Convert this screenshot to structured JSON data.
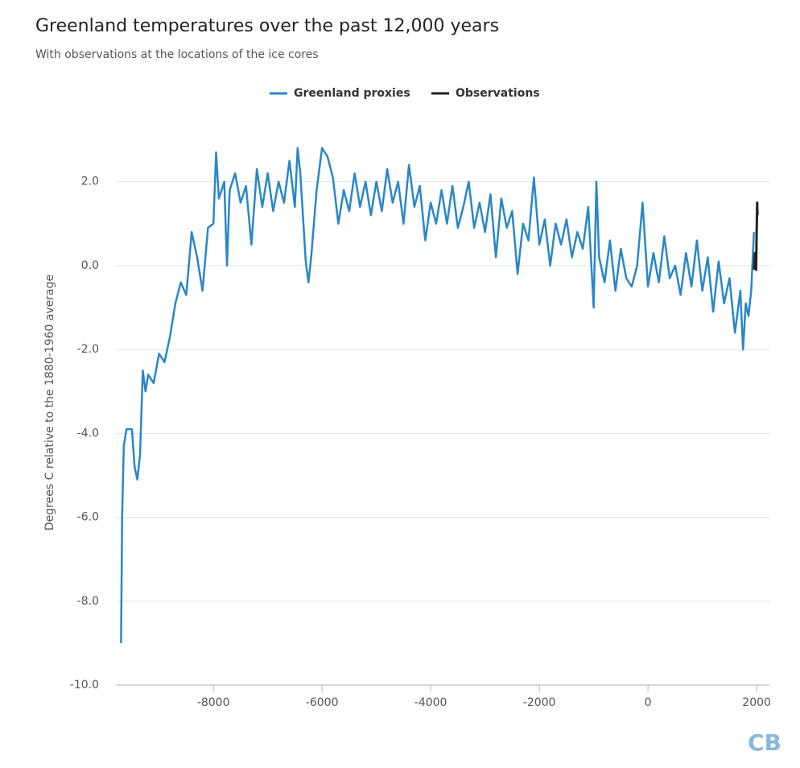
{
  "chart_data": {
    "type": "line",
    "title": "Greenland temperatures over the past 12,000 years",
    "subtitle": "With observations at the locations of the ice cores",
    "y_label": "Degrees C relative to the 1880-1960 average",
    "logo": "CB",
    "xlim": [
      -9780,
      2250
    ],
    "ylim": [
      -10,
      3.3
    ],
    "xticks": [
      -8000,
      -6000,
      -4000,
      -2000,
      0,
      2000
    ],
    "yticks": [
      {
        "value": -10,
        "label": "-10.0"
      },
      {
        "value": -8,
        "label": "-8.0"
      },
      {
        "value": -6,
        "label": "-6.0"
      },
      {
        "value": -4,
        "label": "-4.0"
      },
      {
        "value": -2,
        "label": "-2.0"
      },
      {
        "value": 0,
        "label": "0.0"
      },
      {
        "value": 2,
        "label": "2.0"
      }
    ],
    "grid": true,
    "legend": "top",
    "series": [
      {
        "name": "Greenland proxies",
        "color": "#2a87c8",
        "x": [
          -9700,
          -9680,
          -9650,
          -9600,
          -9500,
          -9450,
          -9400,
          -9350,
          -9300,
          -9250,
          -9200,
          -9100,
          -9000,
          -8900,
          -8800,
          -8700,
          -8600,
          -8500,
          -8400,
          -8300,
          -8200,
          -8100,
          -8000,
          -7950,
          -7900,
          -7800,
          -7750,
          -7700,
          -7600,
          -7500,
          -7400,
          -7300,
          -7200,
          -7100,
          -7000,
          -6900,
          -6800,
          -6700,
          -6600,
          -6500,
          -6450,
          -6400,
          -6300,
          -6250,
          -6200,
          -6100,
          -6000,
          -5900,
          -5800,
          -5700,
          -5600,
          -5500,
          -5400,
          -5300,
          -5200,
          -5100,
          -5000,
          -4900,
          -4800,
          -4700,
          -4600,
          -4500,
          -4400,
          -4300,
          -4200,
          -4100,
          -4000,
          -3900,
          -3800,
          -3700,
          -3600,
          -3500,
          -3400,
          -3300,
          -3200,
          -3100,
          -3000,
          -2900,
          -2800,
          -2700,
          -2600,
          -2500,
          -2400,
          -2300,
          -2200,
          -2100,
          -2000,
          -1900,
          -1800,
          -1700,
          -1600,
          -1500,
          -1400,
          -1300,
          -1200,
          -1100,
          -1000,
          -950,
          -900,
          -800,
          -700,
          -600,
          -500,
          -400,
          -300,
          -200,
          -100,
          0,
          100,
          200,
          300,
          400,
          500,
          600,
          700,
          800,
          900,
          1000,
          1100,
          1200,
          1300,
          1400,
          1500,
          1600,
          1700,
          1750,
          1800,
          1850,
          1900,
          1950
        ],
        "values": [
          -9.0,
          -6.0,
          -4.3,
          -3.9,
          -3.9,
          -4.8,
          -5.1,
          -4.5,
          -2.5,
          -3.0,
          -2.6,
          -2.8,
          -2.1,
          -2.3,
          -1.7,
          -0.9,
          -0.4,
          -0.7,
          0.8,
          0.2,
          -0.6,
          0.9,
          1.0,
          2.7,
          1.6,
          2.0,
          0.0,
          1.8,
          2.2,
          1.5,
          1.9,
          0.5,
          2.3,
          1.4,
          2.2,
          1.3,
          2.0,
          1.5,
          2.5,
          1.4,
          2.8,
          2.2,
          0.1,
          -0.4,
          0.2,
          1.8,
          2.8,
          2.6,
          2.1,
          1.0,
          1.8,
          1.3,
          2.2,
          1.4,
          2.0,
          1.2,
          2.0,
          1.3,
          2.3,
          1.5,
          2.0,
          1.0,
          2.4,
          1.4,
          1.9,
          0.6,
          1.5,
          1.0,
          1.8,
          1.0,
          1.9,
          0.9,
          1.4,
          2.0,
          0.9,
          1.5,
          0.8,
          1.7,
          0.2,
          1.6,
          0.9,
          1.3,
          -0.2,
          1.0,
          0.6,
          2.1,
          0.5,
          1.1,
          0.0,
          1.0,
          0.5,
          1.1,
          0.2,
          0.8,
          0.4,
          1.4,
          -1.0,
          2.0,
          0.2,
          -0.4,
          0.6,
          -0.6,
          0.4,
          -0.3,
          -0.5,
          0.0,
          1.5,
          -0.5,
          0.3,
          -0.4,
          0.7,
          -0.3,
          0.0,
          -0.7,
          0.3,
          -0.5,
          0.6,
          -0.6,
          0.2,
          -1.1,
          0.1,
          -0.9,
          -0.3,
          -1.6,
          -0.6,
          -2.0,
          -0.9,
          -1.2,
          -0.6,
          0.8
        ]
      },
      {
        "name": "Observations",
        "color": "#222222",
        "x": [
          1950,
          1970,
          1990,
          2000,
          2010,
          2015
        ],
        "values": [
          -0.1,
          0.3,
          -0.1,
          0.8,
          1.5,
          1.2
        ]
      }
    ]
  }
}
